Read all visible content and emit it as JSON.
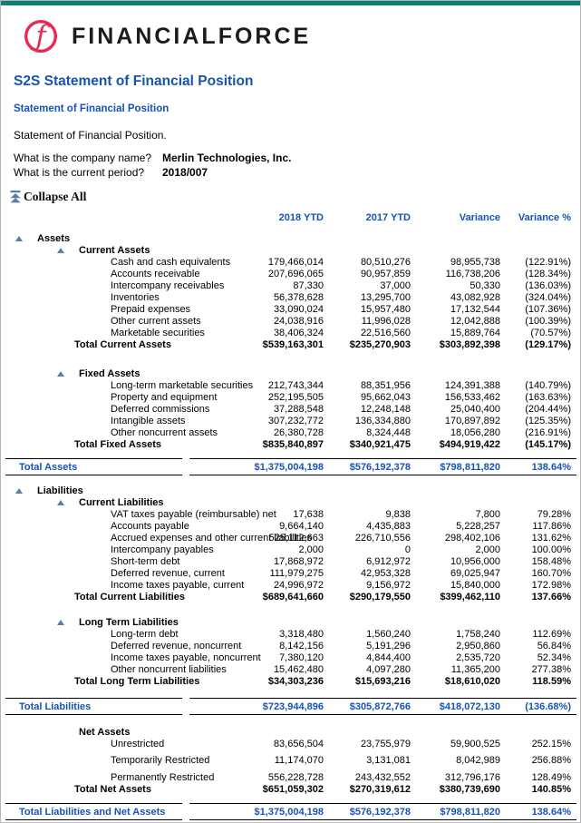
{
  "brand": {
    "wordmark": "FINANCIALFORCE"
  },
  "header": {
    "title": "S2S Statement of Financial Position",
    "report_link": "Statement of Financial Position",
    "description": "Statement of Financial Position."
  },
  "prompts": [
    {
      "q": "What is the company name?",
      "a": "Merlin Technologies, Inc."
    },
    {
      "q": "What is the current period?",
      "a": "2018/007"
    }
  ],
  "controls": {
    "collapse_all": "Collapse All"
  },
  "colors": {
    "accent_teal": "#0e7f78",
    "heading_blue": "#1553b5",
    "logo_pink": "#e62a53",
    "triangle_slate": "#5f7ca6"
  },
  "table": {
    "columns": [
      "2018 YTD",
      "2017 YTD",
      "Variance",
      "Variance %"
    ],
    "rows": [
      {
        "type": "sec1",
        "tri": true,
        "label": "Assets"
      },
      {
        "type": "sec2",
        "tri": true,
        "label": "Current Assets"
      },
      {
        "type": "item",
        "label": "Cash and cash equivalents",
        "values": [
          "179,466,014",
          "80,510,276",
          "98,955,738",
          "(122.91%)"
        ]
      },
      {
        "type": "item",
        "label": "Accounts receivable",
        "values": [
          "207,696,065",
          "90,957,859",
          "116,738,206",
          "(128.34%)"
        ]
      },
      {
        "type": "item",
        "label": "Intercompany receivables",
        "values": [
          "87,330",
          "37,000",
          "50,330",
          "(136.03%)"
        ]
      },
      {
        "type": "item",
        "label": "Inventories",
        "values": [
          "56,378,628",
          "13,295,700",
          "43,082,928",
          "(324.04%)"
        ]
      },
      {
        "type": "item",
        "label": "Prepaid expenses",
        "values": [
          "33,090,024",
          "15,957,480",
          "17,132,544",
          "(107.36%)"
        ]
      },
      {
        "type": "item",
        "label": "Other current assets",
        "values": [
          "24,038,916",
          "11,996,028",
          "12,042,888",
          "(100.39%)"
        ]
      },
      {
        "type": "item",
        "label": "Marketable securities",
        "values": [
          "38,406,324",
          "22,516,560",
          "15,889,764",
          "(70.57%)"
        ]
      },
      {
        "type": "sub",
        "label": "Total Current Assets",
        "values": [
          "$539,163,301",
          "$235,270,903",
          "$303,892,398",
          "(129.17%)"
        ]
      },
      {
        "type": "sp",
        "h": 19
      },
      {
        "type": "sec2",
        "tri": true,
        "label": "Fixed Assets"
      },
      {
        "type": "item",
        "label": "Long-term marketable securities",
        "values": [
          "212,743,344",
          "88,351,956",
          "124,391,388",
          "(140.79%)"
        ]
      },
      {
        "type": "item",
        "label": "Property and equipment",
        "values": [
          "252,195,505",
          "95,662,043",
          "156,533,462",
          "(163.63%)"
        ]
      },
      {
        "type": "item",
        "label": "Deferred commissions",
        "values": [
          "37,288,548",
          "12,248,148",
          "25,040,400",
          "(204.44%)"
        ]
      },
      {
        "type": "item",
        "label": "Intangible assets",
        "values": [
          "307,232,772",
          "136,334,880",
          "170,897,892",
          "(125.35%)"
        ]
      },
      {
        "type": "item",
        "label": "Other noncurrent assets",
        "values": [
          "26,380,728",
          "8,324,448",
          "18,056,280",
          "(216.91%)"
        ]
      },
      {
        "type": "sub",
        "label": "Total Fixed Assets",
        "values": [
          "$835,840,897",
          "$340,921,475",
          "$494,919,422",
          "(145.17%)"
        ]
      },
      {
        "type": "sp",
        "h": 9
      },
      {
        "type": "gt",
        "label": "Total Assets",
        "values": [
          "$1,375,004,198",
          "$576,192,378",
          "$798,811,820",
          "138.64%"
        ]
      },
      {
        "type": "sp",
        "h": 10
      },
      {
        "type": "sec1",
        "tri": true,
        "label": "Liabilities"
      },
      {
        "type": "sec2",
        "tri": true,
        "label": "Current Liabilities"
      },
      {
        "type": "item",
        "label": "VAT taxes payable (reimbursable) net",
        "values": [
          "17,638",
          "9,838",
          "7,800",
          "79.28%"
        ]
      },
      {
        "type": "item",
        "label": "Accounts payable",
        "values": [
          "9,664,140",
          "4,435,883",
          "5,228,257",
          "117.86%"
        ]
      },
      {
        "type": "item",
        "label": "Accrued expenses and other current liabilities",
        "values": [
          "525,112,663",
          "226,710,556",
          "298,402,106",
          "131.62%"
        ]
      },
      {
        "type": "item",
        "label": "Intercompany payables",
        "values": [
          "2,000",
          "0",
          "2,000",
          "100.00%"
        ]
      },
      {
        "type": "item",
        "label": "Short-term debt",
        "values": [
          "17,868,972",
          "6,912,972",
          "10,956,000",
          "158.48%"
        ]
      },
      {
        "type": "item",
        "label": "Deferred revenue, current",
        "values": [
          "111,979,275",
          "42,953,328",
          "69,025,947",
          "160.70%"
        ]
      },
      {
        "type": "item",
        "label": "Income taxes payable, current",
        "values": [
          "24,996,972",
          "9,156,972",
          "15,840,000",
          "172.98%"
        ]
      },
      {
        "type": "sub",
        "label": "Total Current Liabilities",
        "values": [
          "$689,641,660",
          "$290,179,550",
          "$399,462,110",
          "137.66%"
        ]
      },
      {
        "type": "sp",
        "h": 15
      },
      {
        "type": "sec2",
        "tri": true,
        "label": "Long Term Liabilities"
      },
      {
        "type": "item",
        "label": "Long-term debt",
        "values": [
          "3,318,480",
          "1,560,240",
          "1,758,240",
          "112.69%"
        ]
      },
      {
        "type": "item",
        "label": "Deferred revenue, noncurrent",
        "values": [
          "8,142,156",
          "5,191,296",
          "2,950,860",
          "56.84%"
        ]
      },
      {
        "type": "item",
        "label": "Income taxes payable, noncurrent",
        "values": [
          "7,380,120",
          "4,844,400",
          "2,535,720",
          "52.34%"
        ]
      },
      {
        "type": "item",
        "label": "Other noncurrent liabilities",
        "values": [
          "15,462,480",
          "4,097,280",
          "11,365,200",
          "277.38%"
        ]
      },
      {
        "type": "sub",
        "label": "Total Long Term Liabilities",
        "values": [
          "$34,303,236",
          "$15,693,216",
          "$18,610,020",
          "118.59%"
        ]
      },
      {
        "type": "sp",
        "h": 12
      },
      {
        "type": "gt",
        "label": "Total Liabilities",
        "values": [
          "$723,944,896",
          "$305,872,766",
          "$418,072,130",
          "(136.68%)"
        ]
      },
      {
        "type": "sp",
        "h": 12
      },
      {
        "type": "hdr2",
        "label": "Net Assets"
      },
      {
        "type": "item",
        "label": "Unrestricted",
        "values": [
          "83,656,504",
          "23,755,979",
          "59,900,525",
          "252.15%"
        ]
      },
      {
        "type": "sp",
        "h": 5
      },
      {
        "type": "item",
        "label": "Temporarily Restricted",
        "values": [
          "11,174,070",
          "3,131,081",
          "8,042,989",
          "256.88%"
        ]
      },
      {
        "type": "sp",
        "h": 6
      },
      {
        "type": "item",
        "label": "Permanently Restricted",
        "values": [
          "556,228,728",
          "243,432,552",
          "312,796,176",
          "128.49%"
        ]
      },
      {
        "type": "sub",
        "label": "Total Net Assets",
        "values": [
          "$651,059,302",
          "$270,319,612",
          "$380,739,690",
          "140.85%"
        ]
      },
      {
        "type": "sp",
        "h": 9
      },
      {
        "type": "gt",
        "label": "Total Liabilities and Net Assets",
        "values": [
          "$1,375,004,198",
          "$576,192,378",
          "$798,811,820",
          "138.64%"
        ]
      }
    ]
  }
}
